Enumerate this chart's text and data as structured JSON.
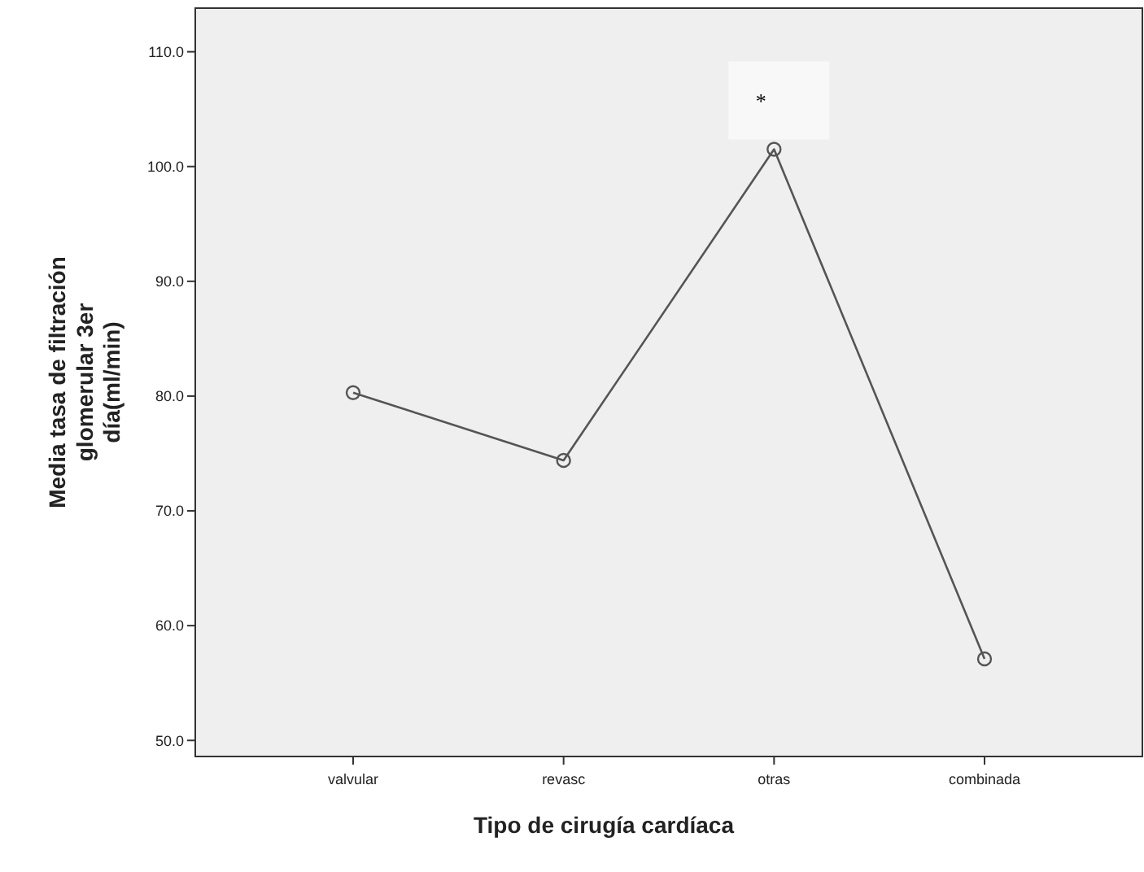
{
  "chart_data": {
    "type": "line",
    "xlabel": "Tipo de cirugía cardíaca",
    "ylabel": "Media tasa de filtración glomerular 3er día(ml/min)",
    "categories": [
      "valvular",
      "revasc",
      "otras",
      "combinada"
    ],
    "series": [
      {
        "color": "#555555",
        "values": [
          80.3,
          74.4,
          101.5,
          57.1
        ]
      }
    ],
    "ylim": [
      48.6,
      113.8
    ],
    "yticks": [
      {
        "value": 50,
        "label": "50.0"
      },
      {
        "value": 60,
        "label": "60.0"
      },
      {
        "value": 70,
        "label": "70.0"
      },
      {
        "value": 80,
        "label": "80.0"
      },
      {
        "value": 90,
        "label": "90.0"
      },
      {
        "value": 100,
        "label": "100.0"
      },
      {
        "value": 110,
        "label": "110.0"
      }
    ],
    "marker": "circle",
    "line_style": "solid",
    "grid": false,
    "annotations": [
      "*"
    ]
  }
}
